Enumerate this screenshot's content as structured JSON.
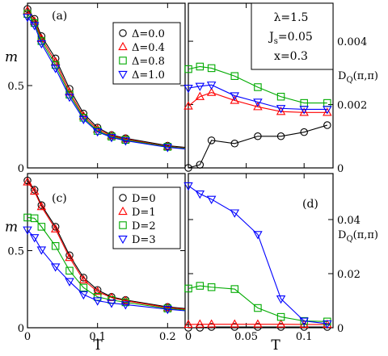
{
  "chart_data": [
    {
      "type": "line",
      "panel_label": "(a)",
      "ylabel": "m",
      "xlabel": "",
      "xlim": [
        0,
        0.225
      ],
      "ylim": [
        0,
        1.0
      ],
      "xticks": [
        0,
        0.1,
        0.2
      ],
      "xtick_labels": [
        "",
        "",
        ""
      ],
      "yticks": [
        0,
        0.5,
        1.0
      ],
      "ytick_labels": [
        "0",
        "0.5",
        ""
      ],
      "legend_position": "top-right",
      "series": [
        {
          "name": "Δ=0.0",
          "color": "#000000",
          "marker": "circle",
          "points": [
            [
              0,
              0.965
            ],
            [
              0.01,
              0.905
            ],
            [
              0.02,
              0.8
            ],
            [
              0.04,
              0.665
            ],
            [
              0.06,
              0.48
            ],
            [
              0.08,
              0.33
            ],
            [
              0.1,
              0.245
            ],
            [
              0.12,
              0.2
            ],
            [
              0.14,
              0.18
            ],
            [
              0.2,
              0.135
            ],
            [
              0.225,
              0.125
            ]
          ]
        },
        {
          "name": "Δ=0.4",
          "color": "#ff0000",
          "marker": "triangle-up",
          "points": [
            [
              0,
              0.955
            ],
            [
              0.01,
              0.89
            ],
            [
              0.02,
              0.785
            ],
            [
              0.04,
              0.645
            ],
            [
              0.06,
              0.46
            ],
            [
              0.08,
              0.315
            ],
            [
              0.1,
              0.235
            ],
            [
              0.12,
              0.195
            ],
            [
              0.14,
              0.175
            ],
            [
              0.2,
              0.13
            ],
            [
              0.225,
              0.12
            ]
          ]
        },
        {
          "name": "Δ=0.8",
          "color": "#00aa00",
          "marker": "square",
          "points": [
            [
              0,
              0.935
            ],
            [
              0.01,
              0.88
            ],
            [
              0.02,
              0.77
            ],
            [
              0.04,
              0.625
            ],
            [
              0.06,
              0.445
            ],
            [
              0.08,
              0.305
            ],
            [
              0.1,
              0.225
            ],
            [
              0.12,
              0.19
            ],
            [
              0.14,
              0.17
            ],
            [
              0.2,
              0.128
            ],
            [
              0.225,
              0.118
            ]
          ]
        },
        {
          "name": "Δ=1.0",
          "color": "#0000ff",
          "marker": "triangle-down",
          "points": [
            [
              0,
              0.915
            ],
            [
              0.01,
              0.865
            ],
            [
              0.02,
              0.755
            ],
            [
              0.04,
              0.605
            ],
            [
              0.06,
              0.43
            ],
            [
              0.08,
              0.295
            ],
            [
              0.1,
              0.22
            ],
            [
              0.12,
              0.185
            ],
            [
              0.14,
              0.165
            ],
            [
              0.2,
              0.125
            ],
            [
              0.225,
              0.115
            ]
          ]
        }
      ]
    },
    {
      "type": "line",
      "panel_label": "(b)",
      "ylabel": "D_Q(π,π)",
      "xlabel": "",
      "xlim": [
        0,
        0.125
      ],
      "ylim": [
        0,
        0.0052
      ],
      "xticks": [
        0,
        0.05,
        0.1
      ],
      "xtick_labels": [
        "",
        "",
        ""
      ],
      "yticks": [
        0,
        0.002,
        0.004
      ],
      "ytick_labels": [
        "0",
        "0.002",
        "0.004"
      ],
      "y_axis_side": "right",
      "annotations": [
        "λ=1.5",
        "J_s=0.05",
        "x=0.3"
      ],
      "series": [
        {
          "name": "Δ=0.0",
          "color": "#000000",
          "marker": "circle",
          "points": [
            [
              0,
              0.0
            ],
            [
              0.01,
              0.0001
            ],
            [
              0.02,
              0.00087
            ],
            [
              0.04,
              0.00077
            ],
            [
              0.06,
              0.001
            ],
            [
              0.08,
              0.001
            ],
            [
              0.1,
              0.00113
            ],
            [
              0.12,
              0.00135
            ]
          ]
        },
        {
          "name": "Δ=0.4",
          "color": "#ff0000",
          "marker": "triangle-up",
          "points": [
            [
              0,
              0.00195
            ],
            [
              0.01,
              0.00225
            ],
            [
              0.02,
              0.00238
            ],
            [
              0.04,
              0.00213
            ],
            [
              0.06,
              0.00193
            ],
            [
              0.08,
              0.00178
            ],
            [
              0.1,
              0.00175
            ],
            [
              0.12,
              0.00175
            ]
          ]
        },
        {
          "name": "Δ=0.8",
          "color": "#00aa00",
          "marker": "square",
          "points": [
            [
              0,
              0.00312
            ],
            [
              0.01,
              0.0032
            ],
            [
              0.02,
              0.00315
            ],
            [
              0.04,
              0.0029
            ],
            [
              0.06,
              0.00255
            ],
            [
              0.08,
              0.00225
            ],
            [
              0.1,
              0.00205
            ],
            [
              0.12,
              0.00205
            ]
          ]
        },
        {
          "name": "Δ=1.0",
          "color": "#0000ff",
          "marker": "triangle-down",
          "points": [
            [
              0,
              0.00252
            ],
            [
              0.01,
              0.00258
            ],
            [
              0.02,
              0.00262
            ],
            [
              0.04,
              0.00228
            ],
            [
              0.06,
              0.00208
            ],
            [
              0.08,
              0.00188
            ],
            [
              0.1,
              0.00185
            ],
            [
              0.12,
              0.00185
            ]
          ]
        }
      ]
    },
    {
      "type": "line",
      "panel_label": "(c)",
      "ylabel": "m",
      "xlabel": "T",
      "xlim": [
        0,
        0.225
      ],
      "ylim": [
        0,
        1.0
      ],
      "xticks": [
        0,
        0.1,
        0.2
      ],
      "xtick_labels": [
        "0",
        "0.1",
        "0.2"
      ],
      "yticks": [
        0,
        0.5,
        1.0
      ],
      "ytick_labels": [
        "0",
        "0.5",
        ""
      ],
      "legend_position": "top-right",
      "series": [
        {
          "name": "D=0",
          "color": "#000000",
          "marker": "circle",
          "points": [
            [
              0,
              0.955
            ],
            [
              0.01,
              0.895
            ],
            [
              0.02,
              0.795
            ],
            [
              0.04,
              0.655
            ],
            [
              0.06,
              0.47
            ],
            [
              0.08,
              0.325
            ],
            [
              0.1,
              0.245
            ],
            [
              0.12,
              0.2
            ],
            [
              0.14,
              0.18
            ],
            [
              0.2,
              0.135
            ],
            [
              0.225,
              0.125
            ]
          ]
        },
        {
          "name": "D=1",
          "color": "#ff0000",
          "marker": "triangle-up",
          "points": [
            [
              0,
              0.945
            ],
            [
              0.01,
              0.885
            ],
            [
              0.02,
              0.785
            ],
            [
              0.04,
              0.64
            ],
            [
              0.06,
              0.455
            ],
            [
              0.08,
              0.31
            ],
            [
              0.1,
              0.235
            ],
            [
              0.12,
              0.195
            ],
            [
              0.14,
              0.175
            ],
            [
              0.2,
              0.13
            ],
            [
              0.225,
              0.12
            ]
          ]
        },
        {
          "name": "D=2",
          "color": "#00aa00",
          "marker": "square",
          "points": [
            [
              0,
              0.715
            ],
            [
              0.01,
              0.71
            ],
            [
              0.02,
              0.655
            ],
            [
              0.04,
              0.53
            ],
            [
              0.06,
              0.37
            ],
            [
              0.08,
              0.26
            ],
            [
              0.1,
              0.2
            ],
            [
              0.12,
              0.18
            ],
            [
              0.14,
              0.165
            ],
            [
              0.2,
              0.125
            ],
            [
              0.225,
              0.115
            ]
          ]
        },
        {
          "name": "D=3",
          "color": "#0000ff",
          "marker": "triangle-down",
          "points": [
            [
              0,
              0.635
            ],
            [
              0.01,
              0.585
            ],
            [
              0.02,
              0.505
            ],
            [
              0.04,
              0.395
            ],
            [
              0.06,
              0.3
            ],
            [
              0.08,
              0.215
            ],
            [
              0.1,
              0.175
            ],
            [
              0.12,
              0.16
            ],
            [
              0.14,
              0.15
            ],
            [
              0.2,
              0.12
            ],
            [
              0.225,
              0.11
            ]
          ]
        }
      ]
    },
    {
      "type": "line",
      "panel_label": "(d)",
      "ylabel": "D_Q(π,π)",
      "xlabel": "T",
      "xlim": [
        0,
        0.125
      ],
      "ylim": [
        0,
        0.057
      ],
      "xticks": [
        0,
        0.05,
        0.1
      ],
      "xtick_labels": [
        "0",
        "0.05",
        "0.1"
      ],
      "yticks": [
        0,
        0.02,
        0.04
      ],
      "ytick_labels": [
        "0",
        "0.02",
        "0.04"
      ],
      "y_axis_side": "right",
      "series": [
        {
          "name": "D=0",
          "color": "#000000",
          "marker": "circle",
          "points": [
            [
              0,
              0.0
            ],
            [
              0.01,
              0.0
            ],
            [
              0.02,
              0.0003
            ],
            [
              0.04,
              0.0003
            ],
            [
              0.06,
              0.0003
            ],
            [
              0.08,
              0.0003
            ],
            [
              0.1,
              0.0003
            ],
            [
              0.12,
              0.0003
            ]
          ]
        },
        {
          "name": "D=1",
          "color": "#ff0000",
          "marker": "triangle-up",
          "points": [
            [
              0,
              0.0012
            ],
            [
              0.01,
              0.0013
            ],
            [
              0.02,
              0.0013
            ],
            [
              0.04,
              0.0013
            ],
            [
              0.06,
              0.0013
            ],
            [
              0.08,
              0.0013
            ],
            [
              0.1,
              0.0012
            ],
            [
              0.12,
              0.0012
            ]
          ]
        },
        {
          "name": "D=2",
          "color": "#00aa00",
          "marker": "square",
          "points": [
            [
              0,
              0.0145
            ],
            [
              0.01,
              0.0155
            ],
            [
              0.02,
              0.015
            ],
            [
              0.04,
              0.0143
            ],
            [
              0.06,
              0.0073
            ],
            [
              0.08,
              0.004
            ],
            [
              0.1,
              0.0025
            ],
            [
              0.12,
              0.0023
            ]
          ]
        },
        {
          "name": "D=3",
          "color": "#0000ff",
          "marker": "triangle-down",
          "points": [
            [
              0,
              0.0525
            ],
            [
              0.01,
              0.0495
            ],
            [
              0.02,
              0.0475
            ],
            [
              0.04,
              0.0425
            ],
            [
              0.06,
              0.0345
            ],
            [
              0.08,
              0.0107
            ],
            [
              0.1,
              0.0025
            ],
            [
              0.12,
              0.0015
            ]
          ]
        }
      ]
    }
  ]
}
